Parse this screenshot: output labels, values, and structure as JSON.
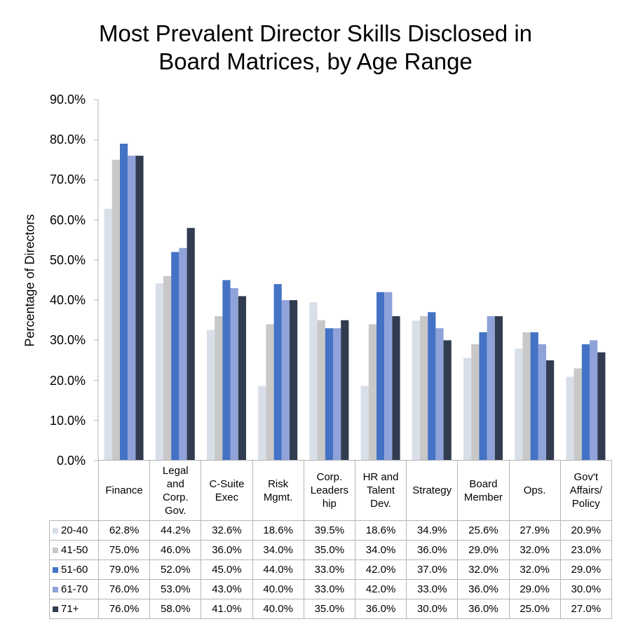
{
  "title_lines": [
    "Most Prevalent Director Skills Disclosed in",
    "Board Matrices, by Age Range"
  ],
  "chart_data": {
    "type": "bar",
    "title": "Most Prevalent Director Skills Disclosed in Board Matrices, by Age Range",
    "ylabel": "Percentage of Directors",
    "xlabel": "",
    "ylim": [
      0,
      90
    ],
    "yticks": [
      "0.0%",
      "10.0%",
      "20.0%",
      "30.0%",
      "40.0%",
      "50.0%",
      "60.0%",
      "70.0%",
      "80.0%",
      "90.0%"
    ],
    "categories": [
      [
        "Finance"
      ],
      [
        "Legal",
        "and",
        "Corp.",
        "Gov."
      ],
      [
        "C-Suite",
        "Exec"
      ],
      [
        "Risk",
        "Mgmt."
      ],
      [
        "Corp.",
        "Leaders",
        "hip"
      ],
      [
        "HR and",
        "Talent",
        "Dev."
      ],
      [
        "Strategy"
      ],
      [
        "Board",
        "Member"
      ],
      [
        "Ops."
      ],
      [
        "Gov't",
        "Affairs/",
        "Policy"
      ]
    ],
    "series": [
      {
        "name": "20-40",
        "color": "#d9dfe8",
        "values": [
          62.8,
          44.2,
          32.6,
          18.6,
          39.5,
          18.6,
          34.9,
          25.6,
          27.9,
          20.9
        ],
        "labels": [
          "62.8%",
          "44.2%",
          "32.6%",
          "18.6%",
          "39.5%",
          "18.6%",
          "34.9%",
          "25.6%",
          "27.9%",
          "20.9%"
        ]
      },
      {
        "name": "41-50",
        "color": "#c8c8c8",
        "values": [
          75.0,
          46.0,
          36.0,
          34.0,
          35.0,
          34.0,
          36.0,
          29.0,
          32.0,
          23.0
        ],
        "labels": [
          "75.0%",
          "46.0%",
          "36.0%",
          "34.0%",
          "35.0%",
          "34.0%",
          "36.0%",
          "29.0%",
          "32.0%",
          "23.0%"
        ]
      },
      {
        "name": "51-60",
        "color": "#4472c4",
        "values": [
          79.0,
          52.0,
          45.0,
          44.0,
          33.0,
          42.0,
          37.0,
          32.0,
          32.0,
          29.0
        ],
        "labels": [
          "79.0%",
          "52.0%",
          "45.0%",
          "44.0%",
          "33.0%",
          "42.0%",
          "37.0%",
          "32.0%",
          "32.0%",
          "29.0%"
        ]
      },
      {
        "name": "61-70",
        "color": "#8fa2d9",
        "values": [
          76.0,
          53.0,
          43.0,
          40.0,
          33.0,
          42.0,
          33.0,
          36.0,
          29.0,
          30.0
        ],
        "labels": [
          "76.0%",
          "53.0%",
          "43.0%",
          "40.0%",
          "33.0%",
          "42.0%",
          "33.0%",
          "36.0%",
          "29.0%",
          "30.0%"
        ]
      },
      {
        "name": "71+",
        "color": "#323c50",
        "values": [
          76.0,
          58.0,
          41.0,
          40.0,
          35.0,
          36.0,
          30.0,
          36.0,
          25.0,
          27.0
        ],
        "labels": [
          "76.0%",
          "58.0%",
          "41.0%",
          "40.0%",
          "35.0%",
          "36.0%",
          "30.0%",
          "36.0%",
          "25.0%",
          "27.0%"
        ]
      }
    ]
  }
}
